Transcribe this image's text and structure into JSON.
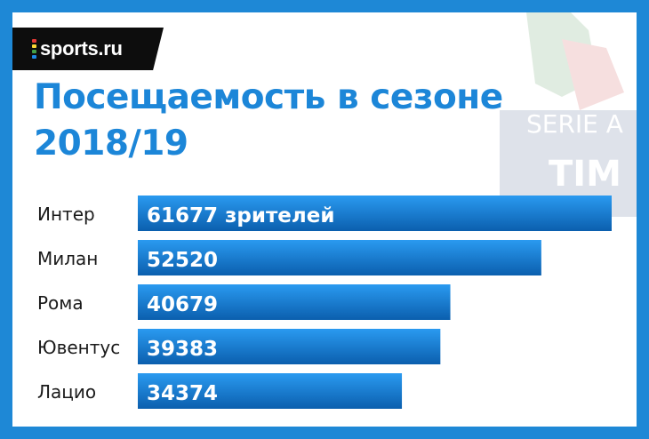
{
  "brand": {
    "name": "sports.ru",
    "dot_colors": [
      "#e53935",
      "#fdd835",
      "#43a047",
      "#1e88e5"
    ]
  },
  "title_lines": [
    "Посещаемость в сезоне",
    "2018/19"
  ],
  "watermark": {
    "line1": "SERIE A",
    "line2": "TIM"
  },
  "colors": {
    "background": "#1e88d6",
    "title": "#1c86d8",
    "bar_top": "#2a9af0",
    "bar_bottom": "#0b5fae"
  },
  "chart_data": {
    "type": "bar",
    "orientation": "horizontal",
    "title": "Посещаемость в сезоне 2018/19",
    "categories": [
      "Интер",
      "Милан",
      "Рома",
      "Ювентус",
      "Лацио"
    ],
    "values": [
      61677,
      52520,
      40679,
      39383,
      34374
    ],
    "value_labels": [
      "61677 зрителей",
      "52520",
      "40679",
      "39383",
      "34374"
    ],
    "xlim": [
      0,
      61677
    ],
    "grid": false,
    "legend": "none"
  }
}
